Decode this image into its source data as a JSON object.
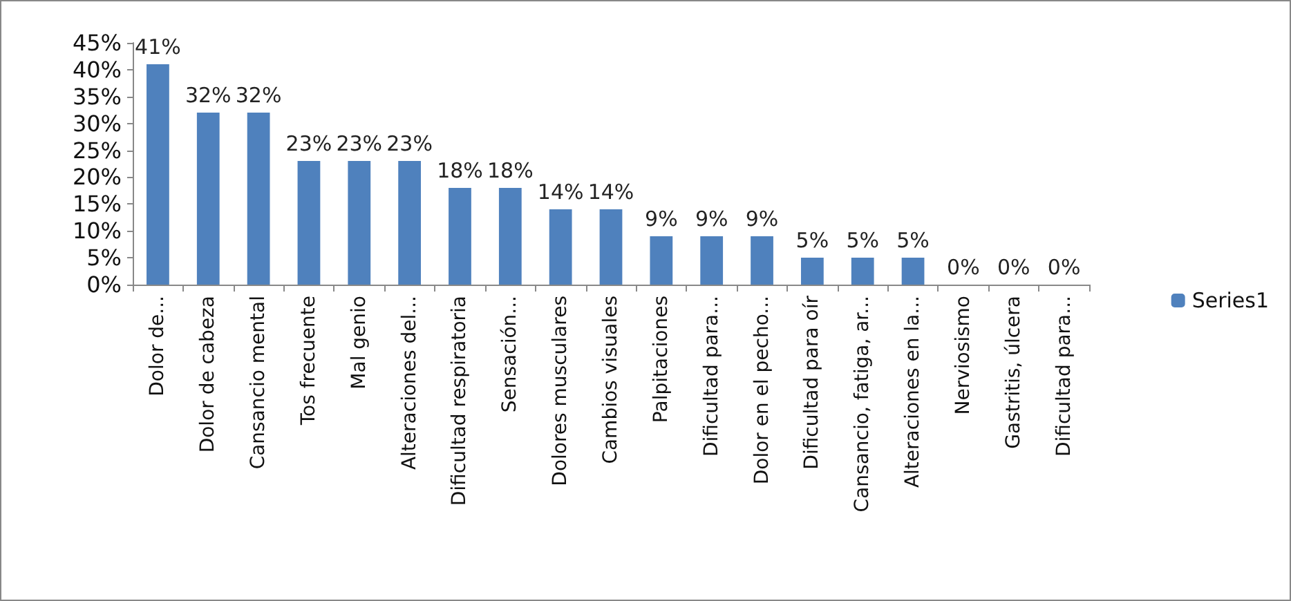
{
  "chart_data": {
    "type": "bar",
    "categories": [
      "Dolor de...",
      "Dolor de cabeza",
      "Cansancio mental",
      "Tos frecuente",
      "Mal genio",
      "Alteraciones del...",
      "Dificultad respiratoria",
      "Sensación...",
      "Dolores musculares",
      "Cambios visuales",
      "Palpitaciones",
      "Dificultad para...",
      "Dolor en el pecho...",
      "Dificultad para oír",
      "Cansancio, fatiga, ar...",
      "Alteraciones en la...",
      "Nerviosismo",
      "Gastritis, úlcera",
      "Dificultad para..."
    ],
    "series": [
      {
        "name": "Series1",
        "color": "#4f81bd",
        "values": [
          41,
          32,
          32,
          23,
          23,
          23,
          18,
          18,
          14,
          14,
          9,
          9,
          9,
          5,
          5,
          5,
          0,
          0,
          0
        ],
        "value_labels": [
          "41%",
          "32%",
          "32%",
          "23%",
          "23%",
          "23%",
          "18%",
          "18%",
          "14%",
          "14%",
          "9%",
          "9%",
          "9%",
          "5%",
          "5%",
          "5%",
          "0%",
          "0%",
          "0%"
        ]
      }
    ],
    "ylim": [
      0,
      45
    ],
    "yticks": [
      {
        "value": 0,
        "label": "0%"
      },
      {
        "value": 5,
        "label": "5%"
      },
      {
        "value": 10,
        "label": "10%"
      },
      {
        "value": 15,
        "label": "15%"
      },
      {
        "value": 20,
        "label": "20%"
      },
      {
        "value": 25,
        "label": "25%"
      },
      {
        "value": 30,
        "label": "30%"
      },
      {
        "value": 35,
        "label": "35%"
      },
      {
        "value": 40,
        "label": "40%"
      },
      {
        "value": 45,
        "label": "45%"
      }
    ],
    "grid": false,
    "legend": "right"
  }
}
